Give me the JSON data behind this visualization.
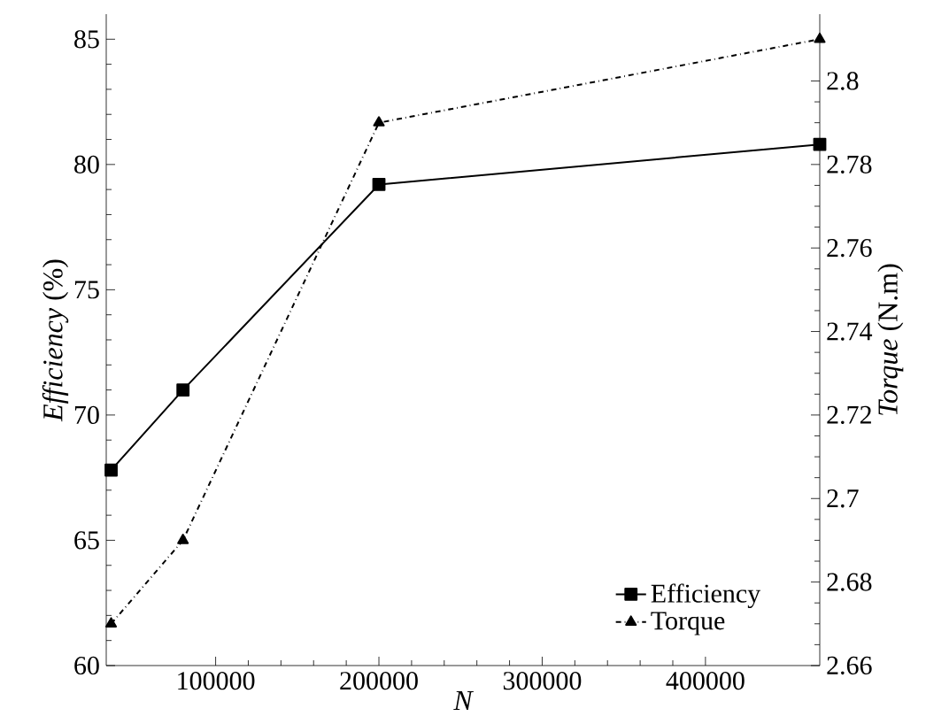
{
  "chart_data": {
    "type": "line",
    "xlabel": "N",
    "ylabel": "*Efficiency* (%)",
    "y2label": "*Torque* (N.m)",
    "x": [
      36000,
      80000,
      200000,
      470000
    ],
    "series": [
      {
        "name": "Efficiency",
        "color": "#000000",
        "values": [
          67.8,
          71.0,
          79.2,
          80.8
        ],
        "marker": "square",
        "line_style": "solid"
      },
      {
        "name": "Torque",
        "color": "#000000",
        "values": [
          2.67,
          2.69,
          2.79,
          2.81
        ],
        "axis": "y2",
        "marker": "triangle",
        "line_style": "dashdot"
      }
    ],
    "xlim": [
      33000,
      470000
    ],
    "xticks": [
      100000,
      200000,
      300000,
      400000
    ],
    "ylim": [
      60,
      86
    ],
    "yticks": [
      60,
      65,
      70,
      75,
      80,
      85
    ],
    "y2lim": [
      2.66,
      2.816
    ],
    "y2ticks": [
      2.66,
      2.68,
      2.7,
      2.72,
      2.74,
      2.76,
      2.78,
      2.8
    ],
    "legend": "bottom right",
    "grid": false
  }
}
